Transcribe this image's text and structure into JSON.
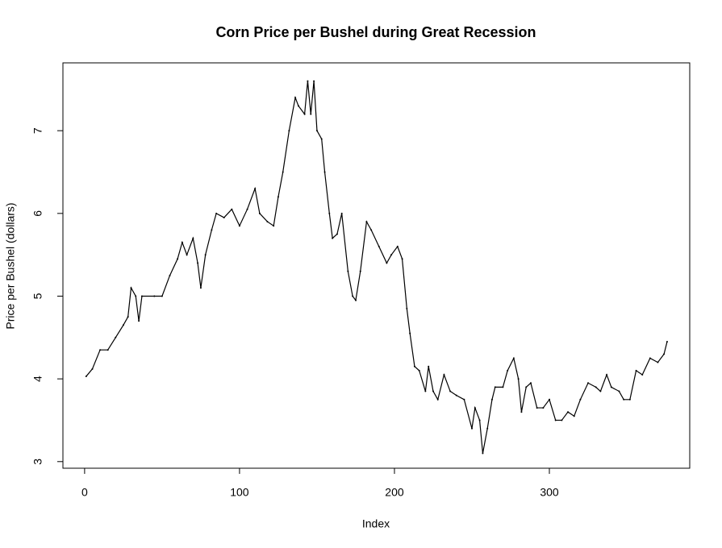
{
  "chart_data": {
    "type": "line",
    "title": "Corn Price per Bushel during Great Recession",
    "x_label": "Index",
    "y_label": "Price per Bushel (dollars)",
    "x": [
      1,
      5,
      10,
      15,
      20,
      25,
      28,
      30,
      33,
      35,
      37,
      45,
      50,
      55,
      60,
      63,
      66,
      70,
      73,
      75,
      78,
      82,
      85,
      90,
      95,
      100,
      105,
      110,
      113,
      118,
      122,
      125,
      128,
      132,
      136,
      138,
      142,
      144,
      146,
      148,
      150,
      153,
      155,
      158,
      160,
      163,
      166,
      170,
      173,
      175,
      178,
      182,
      185,
      190,
      195,
      198,
      202,
      205,
      208,
      210,
      213,
      216,
      220,
      222,
      225,
      228,
      232,
      236,
      240,
      245,
      250,
      252,
      255,
      257,
      260,
      263,
      265,
      270,
      273,
      277,
      280,
      282,
      285,
      288,
      292,
      296,
      300,
      304,
      308,
      312,
      316,
      320,
      325,
      330,
      333,
      337,
      340,
      345,
      348,
      352,
      356,
      360,
      365,
      370,
      374,
      376
    ],
    "series": [
      {
        "name": "price",
        "color": "#000000",
        "values": [
          4.03,
          4.12,
          4.35,
          4.35,
          4.5,
          4.65,
          4.75,
          5.1,
          5.0,
          4.7,
          5.0,
          5.0,
          5.0,
          5.25,
          5.45,
          5.65,
          5.5,
          5.7,
          5.4,
          5.1,
          5.5,
          5.8,
          6.0,
          5.95,
          6.05,
          5.85,
          6.05,
          6.3,
          6.0,
          5.9,
          5.85,
          6.2,
          6.5,
          7.0,
          7.4,
          7.3,
          7.2,
          7.6,
          7.2,
          7.6,
          7.0,
          6.9,
          6.5,
          6.0,
          5.7,
          5.75,
          6.0,
          5.3,
          5.0,
          4.95,
          5.3,
          5.9,
          5.8,
          5.6,
          5.4,
          5.5,
          5.6,
          5.45,
          4.85,
          4.55,
          4.15,
          4.1,
          3.85,
          4.15,
          3.85,
          3.75,
          4.05,
          3.85,
          3.8,
          3.75,
          3.4,
          3.65,
          3.5,
          3.1,
          3.4,
          3.75,
          3.9,
          3.9,
          4.1,
          4.25,
          4.0,
          3.6,
          3.9,
          3.95,
          3.65,
          3.65,
          3.75,
          3.5,
          3.5,
          3.6,
          3.55,
          3.75,
          3.95,
          3.9,
          3.85,
          4.05,
          3.9,
          3.85,
          3.75,
          3.75,
          4.1,
          4.05,
          4.25,
          4.2,
          4.3,
          4.45
        ]
      }
    ],
    "xlim": [
      -14,
      390.6
    ],
    "ylim": [
      2.92,
      7.82
    ],
    "xticks": [
      0,
      100,
      200,
      300
    ],
    "yticks": [
      3,
      4,
      5,
      6,
      7
    ]
  }
}
